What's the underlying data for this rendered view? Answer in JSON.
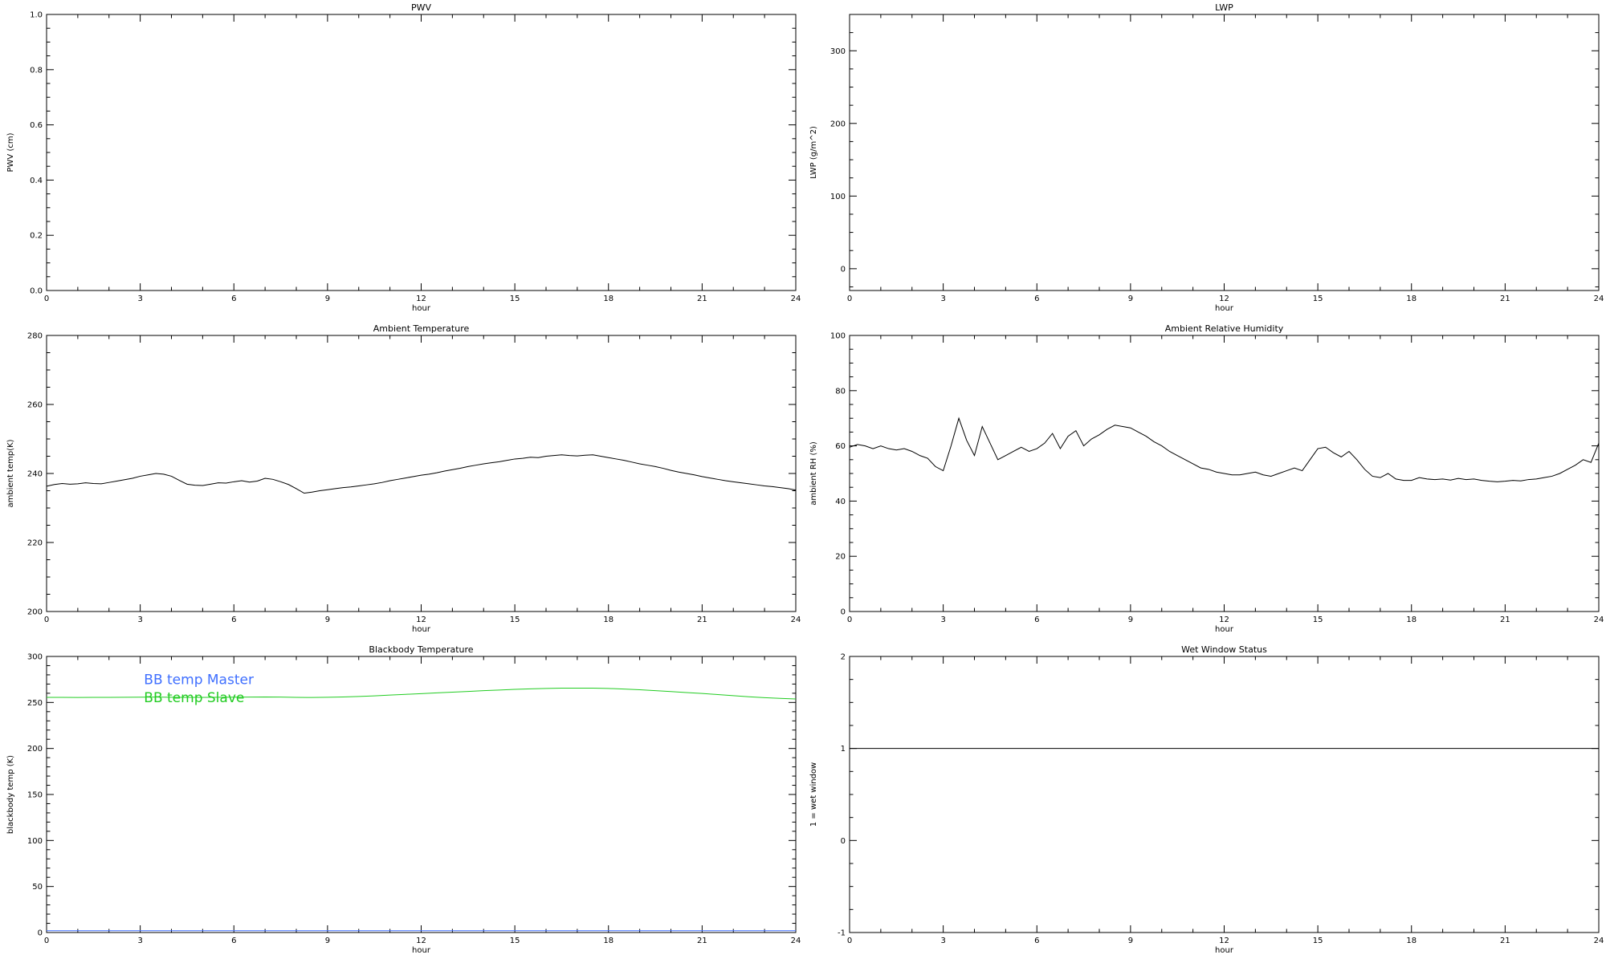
{
  "page": {
    "background": "#ffffff",
    "axis_color": "#000000"
  },
  "chart_data": [
    {
      "type": "line",
      "title": "PWV",
      "xlabel": "hour",
      "ylabel": "PWV (cm)",
      "xlim": [
        0,
        24
      ],
      "ylim": [
        0.0,
        1.0
      ],
      "xticks": [
        0,
        3,
        6,
        9,
        12,
        15,
        18,
        21,
        24
      ],
      "xtick_labels": [
        "0",
        "3",
        "6",
        "9",
        "12",
        "15",
        "18",
        "21",
        "24"
      ],
      "yticks": [
        0.0,
        0.2,
        0.4,
        0.6,
        0.8,
        1.0
      ],
      "ytick_labels": [
        "0.0",
        "0.2",
        "0.4",
        "0.6",
        "0.8",
        "1.0"
      ],
      "xminor": 1,
      "yminor": 0.05,
      "grid": false,
      "series": []
    },
    {
      "type": "line",
      "title": "LWP",
      "xlabel": "hour",
      "ylabel": "LWP (g/m^2)",
      "xlim": [
        0,
        24
      ],
      "ylim": [
        -30,
        350
      ],
      "xticks": [
        0,
        3,
        6,
        9,
        12,
        15,
        18,
        21,
        24
      ],
      "xtick_labels": [
        "0",
        "3",
        "6",
        "9",
        "12",
        "15",
        "18",
        "21",
        "24"
      ],
      "yticks": [
        0,
        100,
        200,
        300
      ],
      "ytick_labels": [
        "0",
        "100",
        "200",
        "300"
      ],
      "xminor": 1,
      "yminor": 25,
      "grid": false,
      "series": []
    },
    {
      "type": "line",
      "title": "Ambient Temperature",
      "xlabel": "hour",
      "ylabel": "ambient temp(K)",
      "xlim": [
        0,
        24
      ],
      "ylim": [
        200,
        280
      ],
      "xticks": [
        0,
        3,
        6,
        9,
        12,
        15,
        18,
        21,
        24
      ],
      "xtick_labels": [
        "0",
        "3",
        "6",
        "9",
        "12",
        "15",
        "18",
        "21",
        "24"
      ],
      "yticks": [
        200,
        220,
        240,
        260,
        280
      ],
      "ytick_labels": [
        "200",
        "220",
        "240",
        "260",
        "280"
      ],
      "xminor": 1,
      "yminor": 5,
      "grid": false,
      "series": [
        {
          "name": "ambient temperature",
          "color": "#000000",
          "x_start": 0,
          "x_step": 0.25,
          "values": [
            236.3,
            236.8,
            237.1,
            236.9,
            237.0,
            237.3,
            237.1,
            237.0,
            237.4,
            237.8,
            238.2,
            238.6,
            239.2,
            239.6,
            240.0,
            239.8,
            239.2,
            238.0,
            236.9,
            236.6,
            236.5,
            236.9,
            237.3,
            237.2,
            237.6,
            237.9,
            237.5,
            237.8,
            238.6,
            238.3,
            237.6,
            236.8,
            235.6,
            234.3,
            234.6,
            235.0,
            235.3,
            235.6,
            235.9,
            236.1,
            236.4,
            236.7,
            237.0,
            237.4,
            237.9,
            238.3,
            238.7,
            239.1,
            239.5,
            239.8,
            240.2,
            240.7,
            241.1,
            241.5,
            242.0,
            242.4,
            242.8,
            243.1,
            243.4,
            243.8,
            244.2,
            244.4,
            244.7,
            244.6,
            245.0,
            245.2,
            245.4,
            245.2,
            245.1,
            245.3,
            245.4,
            245.0,
            244.6,
            244.2,
            243.8,
            243.3,
            242.8,
            242.4,
            242.0,
            241.5,
            240.9,
            240.4,
            240.0,
            239.6,
            239.1,
            238.7,
            238.3,
            237.9,
            237.6,
            237.3,
            237.0,
            236.7,
            236.4,
            236.2,
            235.9,
            235.6,
            235.2
          ]
        }
      ]
    },
    {
      "type": "line",
      "title": "Ambient Relative Humidity",
      "xlabel": "hour",
      "ylabel": "ambient RH (%)",
      "xlim": [
        0,
        24
      ],
      "ylim": [
        0,
        100
      ],
      "xticks": [
        0,
        3,
        6,
        9,
        12,
        15,
        18,
        21,
        24
      ],
      "xtick_labels": [
        "0",
        "3",
        "6",
        "9",
        "12",
        "15",
        "18",
        "21",
        "24"
      ],
      "yticks": [
        0,
        20,
        40,
        60,
        80,
        100
      ],
      "ytick_labels": [
        "0",
        "20",
        "40",
        "60",
        "80",
        "100"
      ],
      "xminor": 1,
      "yminor": 5,
      "grid": false,
      "series": [
        {
          "name": "ambient relative humidity",
          "color": "#000000",
          "x_start": 0,
          "x_step": 0.25,
          "values": [
            59.5,
            60.5,
            60.0,
            59.0,
            60.0,
            59.0,
            58.5,
            59.0,
            58.0,
            56.5,
            55.5,
            52.5,
            51.0,
            60.0,
            70.0,
            62.0,
            56.5,
            67.0,
            61.0,
            55.0,
            56.5,
            58.0,
            59.5,
            58.0,
            59.0,
            61.0,
            64.5,
            59.0,
            63.5,
            65.5,
            60.0,
            62.5,
            64.0,
            66.0,
            67.5,
            67.0,
            66.5,
            65.0,
            63.5,
            61.5,
            60.0,
            58.0,
            56.5,
            55.0,
            53.5,
            52.0,
            51.5,
            50.5,
            50.0,
            49.5,
            49.5,
            50.0,
            50.5,
            49.5,
            49.0,
            50.0,
            51.0,
            52.0,
            51.0,
            55.0,
            59.0,
            59.5,
            57.5,
            56.0,
            58.0,
            55.0,
            51.5,
            49.0,
            48.5,
            50.0,
            48.0,
            47.5,
            47.5,
            48.5,
            48.0,
            47.8,
            48.0,
            47.6,
            48.2,
            47.8,
            48.0,
            47.5,
            47.2,
            47.0,
            47.2,
            47.5,
            47.3,
            47.8,
            48.0,
            48.5,
            49.0,
            50.0,
            51.5,
            53.0,
            55.0,
            54.0,
            61.0
          ]
        }
      ]
    },
    {
      "type": "line",
      "title": "Blackbody Temperature",
      "xlabel": "hour",
      "ylabel": "blackbody temp (K)",
      "xlim": [
        0,
        24
      ],
      "ylim": [
        0,
        300
      ],
      "xticks": [
        0,
        3,
        6,
        9,
        12,
        15,
        18,
        21,
        24
      ],
      "xtick_labels": [
        "0",
        "3",
        "6",
        "9",
        "12",
        "15",
        "18",
        "21",
        "24"
      ],
      "yticks": [
        0,
        50,
        100,
        150,
        200,
        250,
        300
      ],
      "ytick_labels": [
        "0",
        "50",
        "100",
        "150",
        "200",
        "250",
        "300"
      ],
      "xminor": 1,
      "yminor": 10,
      "grid": false,
      "series": [
        {
          "name": "BB temp Slave",
          "color": "#22cc22",
          "x_start": 0,
          "x_step": 0.5,
          "values": [
            255.5,
            255.5,
            255.4,
            255.5,
            255.5,
            255.6,
            255.7,
            255.8,
            255.6,
            255.5,
            255.5,
            255.6,
            255.7,
            255.8,
            256.0,
            255.8,
            255.5,
            255.4,
            255.6,
            256.0,
            256.5,
            257.2,
            258.0,
            258.8,
            259.6,
            260.4,
            261.2,
            262.0,
            262.8,
            263.5,
            264.2,
            264.8,
            265.2,
            265.5,
            265.6,
            265.5,
            265.2,
            264.6,
            263.8,
            262.8,
            261.8,
            260.8,
            259.8,
            258.6,
            257.4,
            256.2,
            255.2,
            254.4,
            253.8
          ]
        },
        {
          "name": "BB temp Master",
          "color": "#3f6fff",
          "x_start": 0,
          "x_step": 24,
          "values": [
            2,
            2
          ]
        }
      ],
      "legend": [
        {
          "label": "BB temp Master",
          "color": "#3f6fff",
          "fx": 0.13,
          "fy": 0.1
        },
        {
          "label": "BB temp Slave",
          "color": "#22cc22",
          "fx": 0.13,
          "fy": 0.165
        }
      ]
    },
    {
      "type": "line",
      "title": "Wet Window Status",
      "xlabel": "hour",
      "ylabel": "1 = wet window",
      "xlim": [
        0,
        24
      ],
      "ylim": [
        -1,
        2
      ],
      "xticks": [
        0,
        3,
        6,
        9,
        12,
        15,
        18,
        21,
        24
      ],
      "xtick_labels": [
        "0",
        "3",
        "6",
        "9",
        "12",
        "15",
        "18",
        "21",
        "24"
      ],
      "yticks": [
        -1,
        0,
        1,
        2
      ],
      "ytick_labels": [
        "-1",
        "0",
        "1",
        "2"
      ],
      "xminor": 1,
      "yminor": 0.25,
      "grid": false,
      "series": [
        {
          "name": "wet window status",
          "color": "#000000",
          "x_start": 0,
          "x_step": 24,
          "values": [
            1,
            1
          ]
        }
      ]
    }
  ]
}
